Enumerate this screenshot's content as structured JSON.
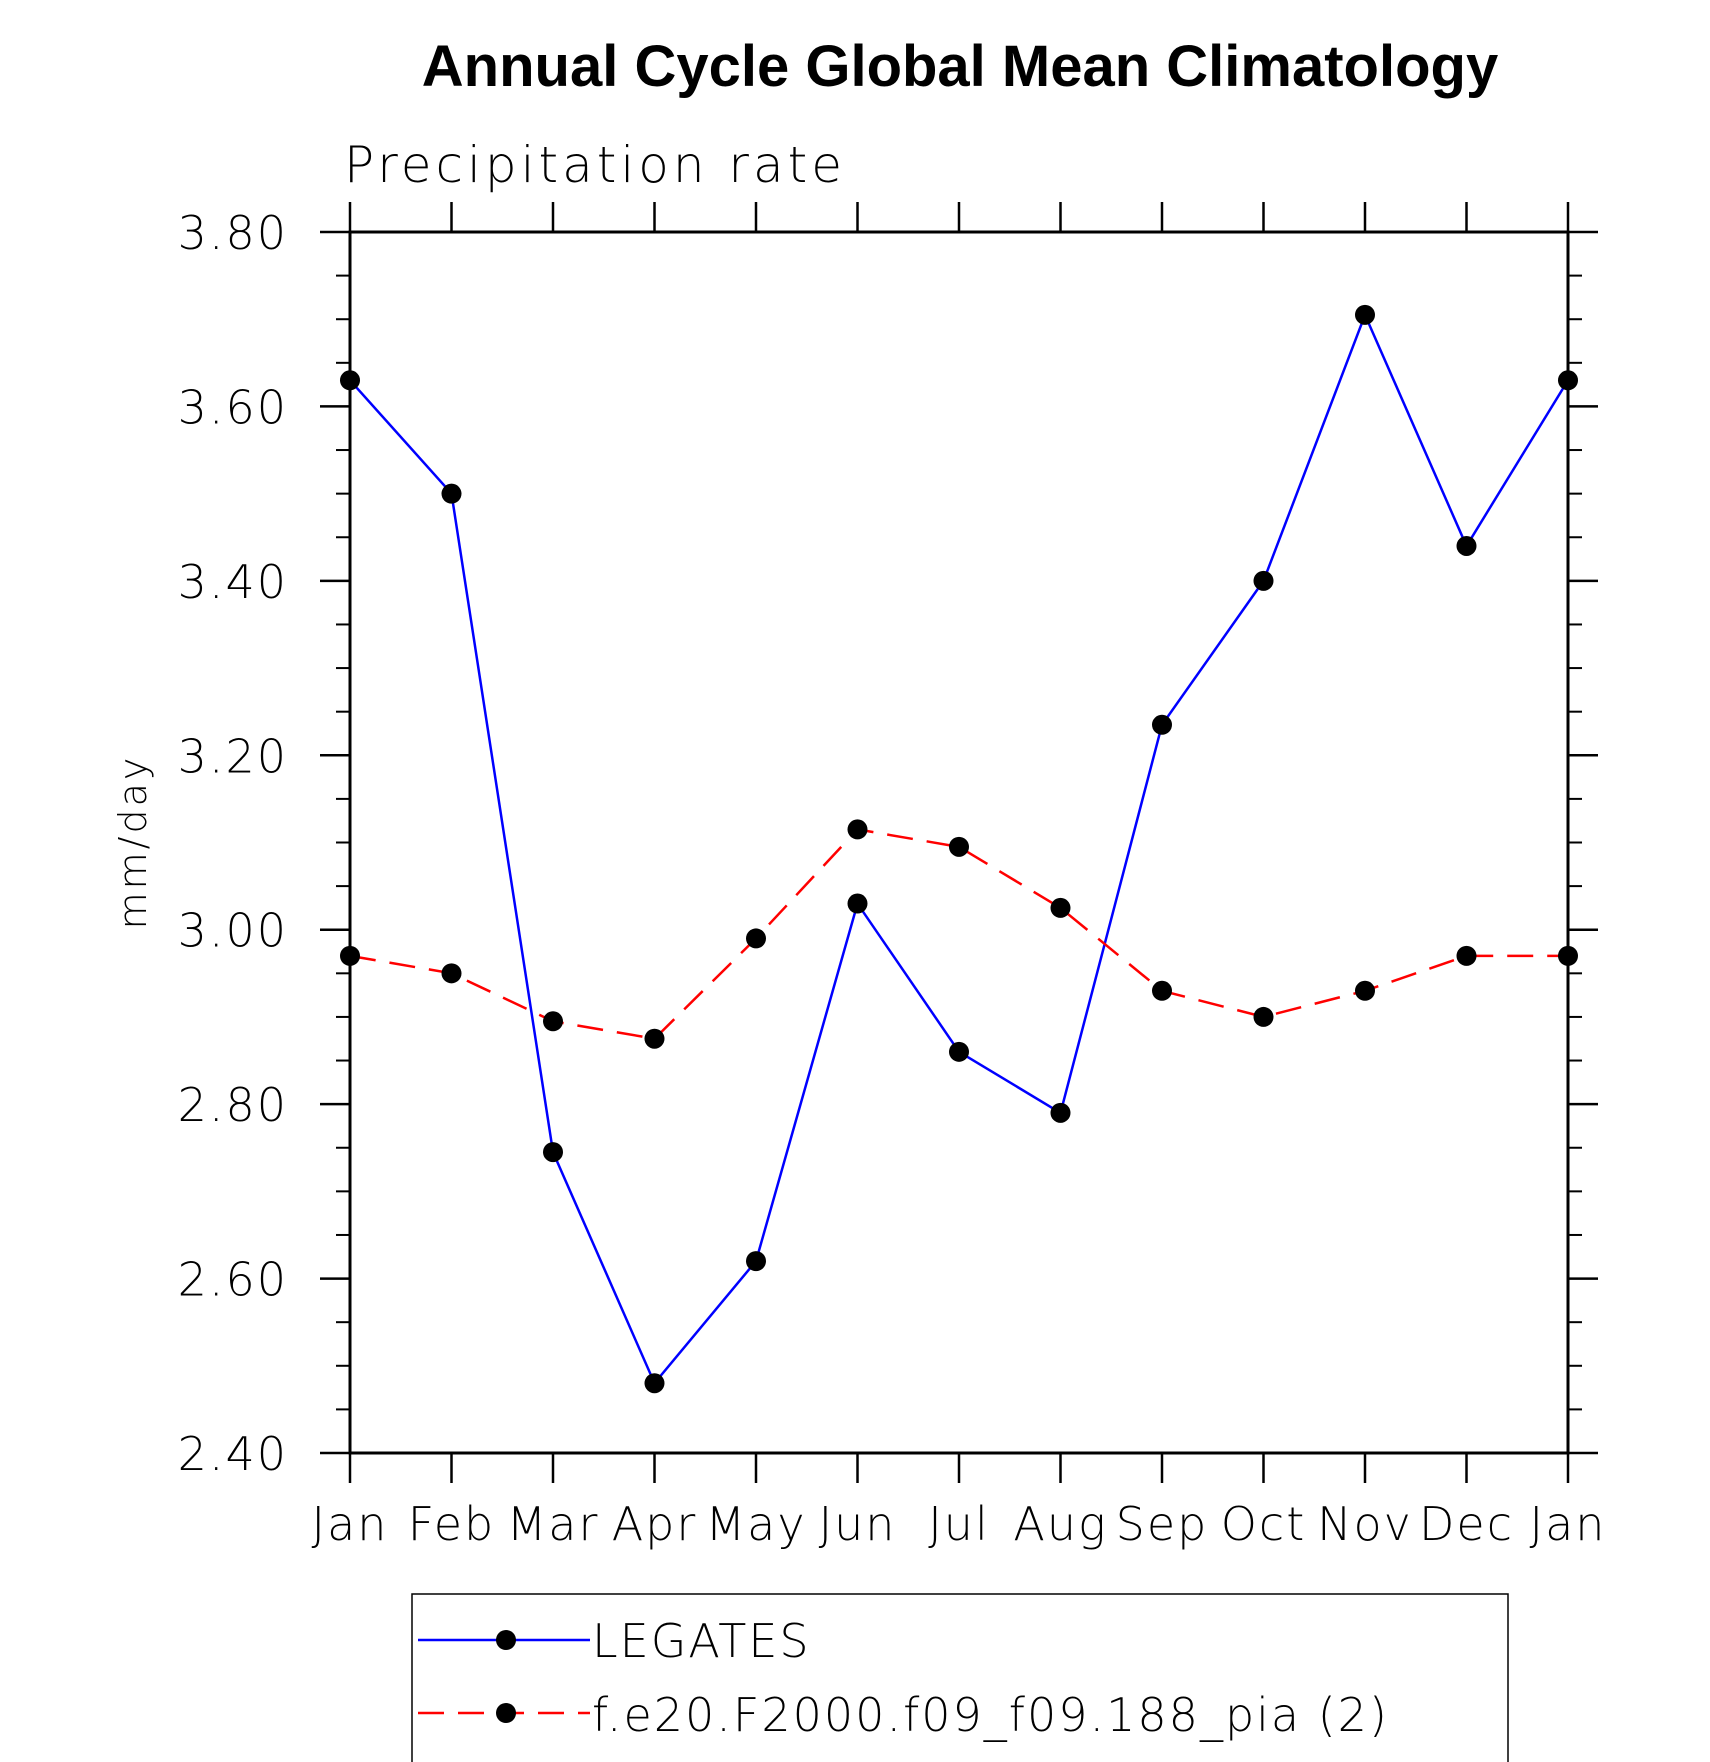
{
  "chart_data": {
    "type": "line",
    "title": "Annual Cycle Global Mean Climatology",
    "subtitle": "Precipitation rate",
    "xlabel": "",
    "ylabel": "mm/day",
    "categories": [
      "Jan",
      "Feb",
      "Mar",
      "Apr",
      "May",
      "Jun",
      "Jul",
      "Aug",
      "Sep",
      "Oct",
      "Nov",
      "Dec",
      "Jan"
    ],
    "ylim": [
      2.4,
      3.8
    ],
    "yticks": [
      "2.40",
      "2.60",
      "2.80",
      "3.00",
      "3.20",
      "3.40",
      "3.60",
      "3.80"
    ],
    "legend_position": "bottom",
    "series": [
      {
        "name": "LEGATES",
        "color": "#0000ff",
        "dash": "solid",
        "values": [
          3.63,
          3.5,
          2.745,
          2.48,
          2.62,
          3.03,
          2.86,
          2.79,
          3.235,
          3.4,
          3.705,
          3.44,
          3.63
        ]
      },
      {
        "name": "f.e20.F2000.f09_f09.188_pia (2)",
        "color": "#ff0000",
        "dash": "dashed",
        "values": [
          2.97,
          2.95,
          2.895,
          2.875,
          2.99,
          3.115,
          3.095,
          3.025,
          2.93,
          2.9,
          2.93,
          2.97,
          2.97
        ]
      }
    ]
  }
}
